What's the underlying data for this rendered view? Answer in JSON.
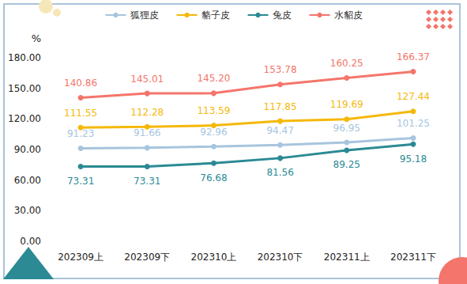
{
  "chart_data": {
    "type": "line",
    "y_label": "%",
    "categories": [
      "202309上",
      "202309下",
      "202310上",
      "202310下",
      "202311上",
      "202311下"
    ],
    "series": [
      {
        "name": "狐狸皮",
        "color": "#a7c5de",
        "values": [
          91.23,
          91.66,
          92.96,
          94.47,
          96.95,
          101.25
        ],
        "value_labels": [
          "91.23",
          "91.66",
          "92.96",
          "94.47",
          "96.95",
          "101.25"
        ]
      },
      {
        "name": "貉子皮",
        "color": "#f5b80a",
        "values": [
          111.55,
          112.28,
          113.59,
          117.85,
          119.69,
          127.44
        ],
        "value_labels": [
          "111.55",
          "112.28",
          "113.59",
          "117.85",
          "119.69",
          "127.44"
        ]
      },
      {
        "name": "兔皮",
        "color": "#2b8a94",
        "values": [
          73.31,
          73.31,
          76.68,
          81.56,
          89.25,
          95.18
        ],
        "value_labels": [
          "73.31",
          "73.31",
          "76.68",
          "81.56",
          "89.25",
          "95.18"
        ]
      },
      {
        "name": "水貂皮",
        "color": "#f4756b",
        "values": [
          140.86,
          145.01,
          145.2,
          153.78,
          160.25,
          166.37
        ],
        "value_labels": [
          "140.86",
          "145.01",
          "145.20",
          "153.78",
          "160.25",
          "166.37"
        ]
      }
    ],
    "ylim": [
      0,
      180
    ],
    "yticks": [
      {
        "value": 0,
        "label": "0.00"
      },
      {
        "value": 30,
        "label": "30.00"
      },
      {
        "value": 60,
        "label": "60.00"
      },
      {
        "value": 90,
        "label": "90.00"
      },
      {
        "value": 120,
        "label": "120.00"
      },
      {
        "value": 150,
        "label": "150.00"
      },
      {
        "value": 180,
        "label": "180.00"
      }
    ],
    "grid": false,
    "legend": "top",
    "data_labels": true,
    "marker": "circle",
    "line_style": "solid"
  }
}
